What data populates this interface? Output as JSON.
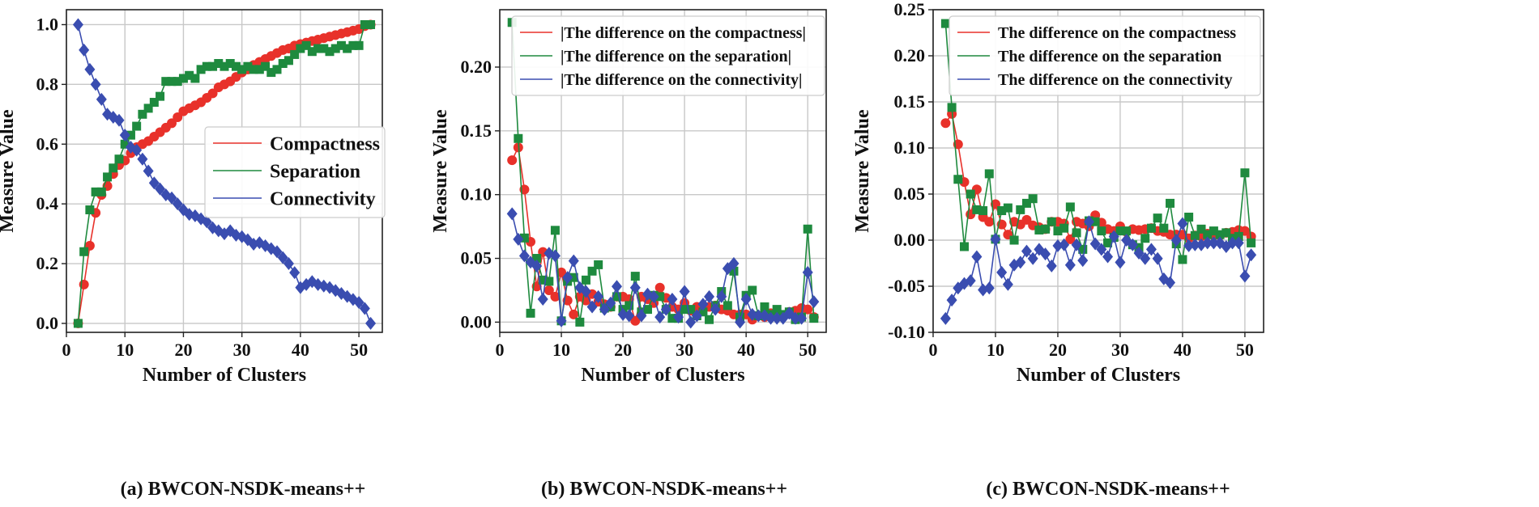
{
  "colors": {
    "compactness": "#e8312a",
    "separation": "#1e8a3e",
    "connectivity": "#3a4db0"
  },
  "chart_data": [
    {
      "type": "line",
      "caption": "(a) BWCON-NSDK-means++",
      "xlabel": "Number of Clusters",
      "ylabel": "Measure Value",
      "xlim": [
        0,
        54
      ],
      "ylim": [
        -0.03,
        1.05
      ],
      "xticks": [
        0,
        10,
        20,
        30,
        40,
        50
      ],
      "yticks": [
        0.0,
        0.2,
        0.4,
        0.6,
        0.8,
        1.0
      ],
      "ytick_labels": [
        "0.0",
        "0.2",
        "0.4",
        "0.6",
        "0.8",
        "1.0"
      ],
      "legend": {
        "position": "center-right",
        "font_size": "large"
      },
      "series": [
        {
          "name": "Compactness",
          "key": "compactness",
          "marker": "circle",
          "x": [
            2,
            3,
            4,
            5,
            6,
            7,
            8,
            9,
            10,
            11,
            12,
            13,
            14,
            15,
            16,
            17,
            18,
            19,
            20,
            21,
            22,
            23,
            24,
            25,
            26,
            27,
            28,
            29,
            30,
            31,
            32,
            33,
            34,
            35,
            36,
            37,
            38,
            39,
            40,
            41,
            42,
            43,
            44,
            45,
            46,
            47,
            48,
            49,
            50,
            51,
            52
          ],
          "values": [
            0.0,
            0.13,
            0.26,
            0.37,
            0.43,
            0.46,
            0.5,
            0.53,
            0.545,
            0.57,
            0.59,
            0.6,
            0.61,
            0.625,
            0.64,
            0.655,
            0.67,
            0.69,
            0.71,
            0.72,
            0.73,
            0.74,
            0.755,
            0.77,
            0.79,
            0.8,
            0.81,
            0.825,
            0.84,
            0.85,
            0.865,
            0.875,
            0.885,
            0.895,
            0.905,
            0.915,
            0.92,
            0.93,
            0.935,
            0.94,
            0.945,
            0.95,
            0.955,
            0.96,
            0.965,
            0.97,
            0.975,
            0.98,
            0.985,
            0.995,
            1.0
          ]
        },
        {
          "name": "Separation",
          "key": "separation",
          "marker": "square",
          "x": [
            2,
            3,
            4,
            5,
            6,
            7,
            8,
            9,
            10,
            11,
            12,
            13,
            14,
            15,
            16,
            17,
            18,
            19,
            20,
            21,
            22,
            23,
            24,
            25,
            26,
            27,
            28,
            29,
            30,
            31,
            32,
            33,
            34,
            35,
            36,
            37,
            38,
            39,
            40,
            41,
            42,
            43,
            44,
            45,
            46,
            47,
            48,
            49,
            50,
            51,
            52
          ],
          "values": [
            0.0,
            0.24,
            0.38,
            0.44,
            0.44,
            0.49,
            0.52,
            0.55,
            0.6,
            0.63,
            0.66,
            0.7,
            0.72,
            0.74,
            0.76,
            0.81,
            0.81,
            0.81,
            0.82,
            0.83,
            0.82,
            0.85,
            0.86,
            0.86,
            0.87,
            0.86,
            0.87,
            0.86,
            0.85,
            0.86,
            0.85,
            0.85,
            0.86,
            0.84,
            0.85,
            0.87,
            0.88,
            0.9,
            0.92,
            0.93,
            0.91,
            0.92,
            0.92,
            0.91,
            0.92,
            0.93,
            0.92,
            0.93,
            0.93,
            1.0,
            1.0
          ]
        },
        {
          "name": "Connectivity",
          "key": "connectivity",
          "marker": "diamond",
          "x": [
            2,
            3,
            4,
            5,
            6,
            7,
            8,
            9,
            10,
            11,
            12,
            13,
            14,
            15,
            16,
            17,
            18,
            19,
            20,
            21,
            22,
            23,
            24,
            25,
            26,
            27,
            28,
            29,
            30,
            31,
            32,
            33,
            34,
            35,
            36,
            37,
            38,
            39,
            40,
            41,
            42,
            43,
            44,
            45,
            46,
            47,
            48,
            49,
            50,
            51,
            52
          ],
          "values": [
            1.0,
            0.915,
            0.85,
            0.8,
            0.75,
            0.7,
            0.69,
            0.68,
            0.63,
            0.59,
            0.58,
            0.55,
            0.51,
            0.47,
            0.45,
            0.43,
            0.42,
            0.4,
            0.38,
            0.365,
            0.36,
            0.35,
            0.34,
            0.32,
            0.31,
            0.3,
            0.31,
            0.295,
            0.29,
            0.28,
            0.265,
            0.27,
            0.26,
            0.25,
            0.24,
            0.22,
            0.2,
            0.17,
            0.12,
            0.13,
            0.14,
            0.13,
            0.125,
            0.12,
            0.11,
            0.1,
            0.09,
            0.08,
            0.07,
            0.05,
            0.0
          ]
        }
      ]
    },
    {
      "type": "line",
      "caption": "(b) BWCON-NSDK-means++",
      "xlabel": "Number of Clusters",
      "ylabel": "Measure Value",
      "xlim": [
        0,
        53
      ],
      "ylim": [
        -0.008,
        0.245
      ],
      "xticks": [
        0,
        10,
        20,
        30,
        40,
        50
      ],
      "yticks": [
        0.0,
        0.05,
        0.1,
        0.15,
        0.2
      ],
      "ytick_labels": [
        "0.00",
        "0.05",
        "0.10",
        "0.15",
        "0.20"
      ],
      "legend": {
        "position": "upper-right",
        "font_size": "medium"
      },
      "series": [
        {
          "name": "|The difference on the compactness|",
          "key": "compactness",
          "marker": "circle",
          "x": [
            2,
            3,
            4,
            5,
            6,
            7,
            8,
            9,
            10,
            11,
            12,
            13,
            14,
            15,
            16,
            17,
            18,
            19,
            20,
            21,
            22,
            23,
            24,
            25,
            26,
            27,
            28,
            29,
            30,
            31,
            32,
            33,
            34,
            35,
            36,
            37,
            38,
            39,
            40,
            41,
            42,
            43,
            44,
            45,
            46,
            47,
            48,
            49,
            50,
            51
          ],
          "values": [
            0.127,
            0.137,
            0.104,
            0.063,
            0.028,
            0.055,
            0.025,
            0.02,
            0.039,
            0.017,
            0.006,
            0.02,
            0.017,
            0.022,
            0.016,
            0.014,
            0.012,
            0.02,
            0.02,
            0.018,
            0.001,
            0.02,
            0.018,
            0.015,
            0.027,
            0.019,
            0.012,
            0.01,
            0.015,
            0.009,
            0.012,
            0.011,
            0.012,
            0.013,
            0.01,
            0.009,
            0.006,
            0.006,
            0.006,
            0.002,
            0.005,
            0.004,
            0.007,
            0.005,
            0.005,
            0.008,
            0.009,
            0.011,
            0.01,
            0.004
          ]
        },
        {
          "name": "|The difference on the separation|",
          "key": "separation",
          "marker": "square",
          "x": [
            2,
            3,
            4,
            5,
            6,
            7,
            8,
            9,
            10,
            11,
            12,
            13,
            14,
            15,
            16,
            17,
            18,
            19,
            20,
            21,
            22,
            23,
            24,
            25,
            26,
            27,
            28,
            29,
            30,
            31,
            32,
            33,
            34,
            35,
            36,
            37,
            38,
            39,
            40,
            41,
            42,
            43,
            44,
            45,
            46,
            47,
            48,
            49,
            50,
            51
          ],
          "values": [
            0.235,
            0.144,
            0.066,
            0.007,
            0.05,
            0.033,
            0.032,
            0.072,
            0.001,
            0.032,
            0.035,
            0.0,
            0.033,
            0.04,
            0.045,
            0.011,
            0.012,
            0.02,
            0.01,
            0.013,
            0.036,
            0.008,
            0.01,
            0.021,
            0.02,
            0.01,
            0.003,
            0.003,
            0.01,
            0.01,
            0.005,
            0.008,
            0.002,
            0.013,
            0.024,
            0.013,
            0.04,
            0.004,
            0.021,
            0.025,
            0.005,
            0.012,
            0.006,
            0.01,
            0.006,
            0.008,
            0.002,
            0.004,
            0.073,
            0.003
          ]
        },
        {
          "name": "|The difference on the connectivity|",
          "key": "connectivity",
          "marker": "diamond",
          "x": [
            2,
            3,
            4,
            5,
            6,
            7,
            8,
            9,
            10,
            11,
            12,
            13,
            14,
            15,
            16,
            17,
            18,
            19,
            20,
            21,
            22,
            23,
            24,
            25,
            26,
            27,
            28,
            29,
            30,
            31,
            32,
            33,
            34,
            35,
            36,
            37,
            38,
            39,
            40,
            41,
            42,
            43,
            44,
            45,
            46,
            47,
            48,
            49,
            50,
            51
          ],
          "values": [
            0.085,
            0.065,
            0.052,
            0.047,
            0.044,
            0.018,
            0.054,
            0.052,
            0.001,
            0.035,
            0.048,
            0.027,
            0.024,
            0.012,
            0.02,
            0.01,
            0.015,
            0.028,
            0.006,
            0.005,
            0.027,
            0.005,
            0.022,
            0.02,
            0.004,
            0.01,
            0.018,
            0.004,
            0.024,
            0.0,
            0.005,
            0.014,
            0.02,
            0.01,
            0.02,
            0.042,
            0.046,
            0.0,
            0.018,
            0.006,
            0.005,
            0.005,
            0.003,
            0.003,
            0.003,
            0.007,
            0.003,
            0.003,
            0.039,
            0.016
          ]
        }
      ]
    },
    {
      "type": "line",
      "caption": "(c) BWCON-NSDK-means++",
      "xlabel": "Number of Clusters",
      "ylabel": "Measure Value",
      "xlim": [
        0,
        53
      ],
      "ylim": [
        -0.1,
        0.25
      ],
      "xticks": [
        0,
        10,
        20,
        30,
        40,
        50
      ],
      "yticks": [
        -0.1,
        -0.05,
        0.0,
        0.05,
        0.1,
        0.15,
        0.2,
        0.25
      ],
      "ytick_labels": [
        "-0.10",
        "-0.05",
        "0.00",
        "0.05",
        "0.10",
        "0.15",
        "0.20",
        "0.25"
      ],
      "legend": {
        "position": "upper-right",
        "font_size": "medium"
      },
      "series": [
        {
          "name": "The difference on the compactness",
          "key": "compactness",
          "marker": "circle",
          "x": [
            2,
            3,
            4,
            5,
            6,
            7,
            8,
            9,
            10,
            11,
            12,
            13,
            14,
            15,
            16,
            17,
            18,
            19,
            20,
            21,
            22,
            23,
            24,
            25,
            26,
            27,
            28,
            29,
            30,
            31,
            32,
            33,
            34,
            35,
            36,
            37,
            38,
            39,
            40,
            41,
            42,
            43,
            44,
            45,
            46,
            47,
            48,
            49,
            50,
            51
          ],
          "values": [
            0.127,
            0.137,
            0.104,
            0.063,
            0.028,
            0.055,
            0.025,
            0.02,
            0.039,
            0.017,
            0.006,
            0.02,
            0.017,
            0.022,
            0.016,
            0.014,
            0.012,
            0.02,
            0.02,
            0.018,
            0.001,
            0.02,
            0.018,
            0.015,
            0.027,
            0.019,
            0.012,
            0.01,
            0.015,
            0.009,
            0.012,
            0.011,
            0.012,
            0.013,
            0.01,
            0.009,
            0.006,
            0.006,
            0.006,
            0.002,
            0.005,
            0.004,
            0.007,
            0.005,
            0.005,
            0.008,
            0.009,
            0.011,
            0.01,
            0.004
          ]
        },
        {
          "name": "The difference on the separation",
          "key": "separation",
          "marker": "square",
          "x": [
            2,
            3,
            4,
            5,
            6,
            7,
            8,
            9,
            10,
            11,
            12,
            13,
            14,
            15,
            16,
            17,
            18,
            19,
            20,
            21,
            22,
            23,
            24,
            25,
            26,
            27,
            28,
            29,
            30,
            31,
            32,
            33,
            34,
            35,
            36,
            37,
            38,
            39,
            40,
            41,
            42,
            43,
            44,
            45,
            46,
            47,
            48,
            49,
            50,
            51
          ],
          "values": [
            0.235,
            0.144,
            0.066,
            -0.007,
            0.05,
            0.033,
            0.032,
            0.072,
            0.001,
            0.032,
            0.035,
            0.0,
            0.033,
            0.04,
            0.045,
            0.011,
            0.012,
            0.02,
            0.01,
            0.013,
            0.036,
            0.008,
            -0.01,
            0.021,
            0.02,
            0.01,
            -0.003,
            0.003,
            0.01,
            0.01,
            -0.005,
            -0.008,
            0.002,
            0.013,
            0.024,
            0.013,
            0.04,
            -0.004,
            -0.021,
            0.025,
            0.005,
            0.012,
            0.006,
            0.01,
            0.006,
            0.008,
            0.002,
            0.004,
            0.073,
            -0.003
          ]
        },
        {
          "name": "The difference on the connectivity",
          "key": "connectivity",
          "marker": "diamond",
          "x": [
            2,
            3,
            4,
            5,
            6,
            7,
            8,
            9,
            10,
            11,
            12,
            13,
            14,
            15,
            16,
            17,
            18,
            19,
            20,
            21,
            22,
            23,
            24,
            25,
            26,
            27,
            28,
            29,
            30,
            31,
            32,
            33,
            34,
            35,
            36,
            37,
            38,
            39,
            40,
            41,
            42,
            43,
            44,
            45,
            46,
            47,
            48,
            49,
            50,
            51
          ],
          "values": [
            -0.085,
            -0.065,
            -0.052,
            -0.047,
            -0.044,
            -0.018,
            -0.054,
            -0.052,
            0.001,
            -0.035,
            -0.048,
            -0.027,
            -0.024,
            -0.012,
            -0.02,
            -0.01,
            -0.015,
            -0.028,
            -0.006,
            -0.005,
            -0.027,
            -0.005,
            -0.022,
            0.02,
            -0.004,
            -0.01,
            -0.018,
            0.004,
            -0.024,
            0.0,
            -0.005,
            -0.014,
            -0.02,
            -0.01,
            -0.02,
            -0.042,
            -0.046,
            0.0,
            0.018,
            -0.006,
            -0.005,
            -0.005,
            -0.003,
            -0.003,
            -0.003,
            -0.007,
            -0.003,
            -0.003,
            -0.039,
            -0.016
          ]
        }
      ]
    }
  ]
}
